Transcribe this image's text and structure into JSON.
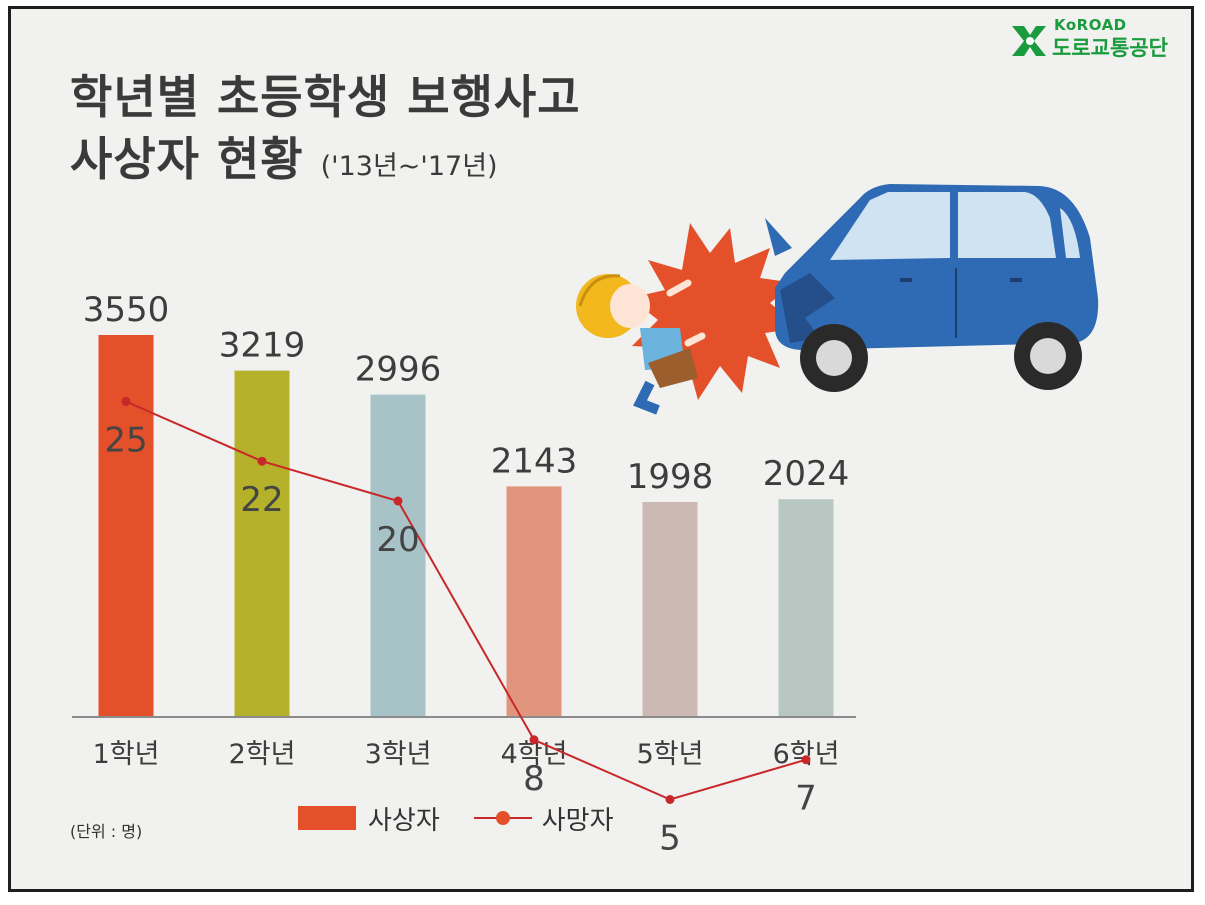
{
  "logo": {
    "en": "KoROAD",
    "ko": "도로교통공단"
  },
  "title": {
    "line1": "학년별 초등학생 보행사고",
    "line2": "사상자 현황",
    "period": "('13년~'17년)"
  },
  "unit_label": "(단위 : 명)",
  "legend": {
    "bars": "사상자",
    "line": "사망자"
  },
  "colors": {
    "background": "#f1f1ef",
    "line": "#c8282a",
    "bars": [
      "#e4502a",
      "#b5b12b",
      "#a8c3c8",
      "#e0957c",
      "#cdb9b4",
      "#b8c7c2"
    ]
  },
  "chart_data": {
    "type": "bar",
    "categories": [
      "1학년",
      "2학년",
      "3학년",
      "4학년",
      "5학년",
      "6학년"
    ],
    "series": [
      {
        "name": "사상자",
        "type": "bar",
        "values": [
          3550,
          3219,
          2996,
          2143,
          1998,
          2024
        ]
      },
      {
        "name": "사망자",
        "type": "line",
        "values": [
          25,
          22,
          20,
          8,
          5,
          7
        ]
      }
    ],
    "title": "학년별 초등학생 보행사고 사상자 현황 ('13년~'17년)",
    "xlabel": "",
    "ylabel": "",
    "grid": false,
    "legend_position": "bottom"
  }
}
